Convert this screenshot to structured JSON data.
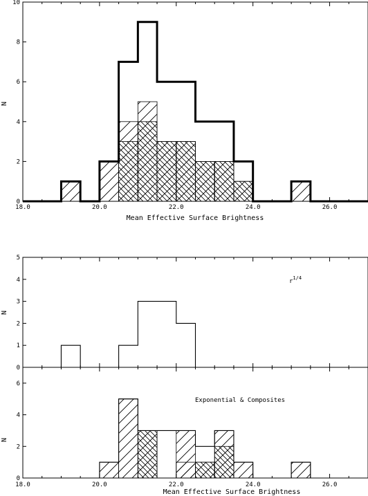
{
  "chart_data": [
    {
      "type": "bar",
      "xlabel": "Mean Effective Surface Brightness",
      "ylabel": "N",
      "xlim": [
        18.0,
        27.0
      ],
      "ylim": [
        0,
        10
      ],
      "x_ticks": [
        "18.0",
        "20.0",
        "22.0",
        "24.0",
        "26.0"
      ],
      "y_ticks": [
        "0",
        "2",
        "4",
        "6",
        "8",
        "10"
      ],
      "bin_edges": [
        18.0,
        18.5,
        19.0,
        19.5,
        20.0,
        20.5,
        21.0,
        21.5,
        22.0,
        22.5,
        23.0,
        23.5,
        24.0,
        24.5,
        25.0,
        25.5,
        26.0,
        26.5,
        27.0
      ],
      "series": [
        {
          "style": "bold-outline",
          "values": [
            0,
            0,
            1,
            0,
            2,
            7,
            9,
            6,
            6,
            4,
            4,
            2,
            0,
            0,
            1,
            0,
            0,
            0
          ]
        },
        {
          "style": "hatch-forward",
          "values": [
            0,
            0,
            1,
            0,
            2,
            4,
            5,
            3,
            3,
            2,
            2,
            1,
            0,
            0,
            1,
            0,
            0,
            0
          ]
        },
        {
          "style": "hatch-back",
          "values": [
            0,
            0,
            0,
            0,
            0,
            3,
            4,
            3,
            3,
            2,
            2,
            1,
            0,
            0,
            0,
            0,
            0,
            0
          ]
        }
      ]
    },
    {
      "type": "bar",
      "ylabel": "N",
      "xlim": [
        18.0,
        27.0
      ],
      "ylim": [
        0,
        5
      ],
      "y_ticks": [
        "0",
        "1",
        "2",
        "3",
        "4",
        "5"
      ],
      "annotation": "r",
      "annotation_sup": "1/4",
      "bin_edges": [
        18.0,
        18.5,
        19.0,
        19.5,
        20.0,
        20.5,
        21.0,
        21.5,
        22.0,
        22.5,
        23.0,
        23.5,
        24.0,
        24.5,
        25.0,
        25.5,
        26.0,
        26.5,
        27.0
      ],
      "series": [
        {
          "style": "outline",
          "values": [
            0,
            0,
            1,
            0,
            0,
            1,
            3,
            3,
            2,
            0,
            0,
            0,
            0,
            0,
            0,
            0,
            0,
            0
          ]
        }
      ]
    },
    {
      "type": "bar",
      "xlabel": "Mean Effective Surface Brightness",
      "ylabel": "N",
      "xlim": [
        18.0,
        27.0
      ],
      "ylim": [
        0,
        7
      ],
      "x_ticks": [
        "18.0",
        "20.0",
        "22.0",
        "24.0",
        "26.0"
      ],
      "y_ticks": [
        "0",
        "2",
        "4",
        "6"
      ],
      "annotation": "Exponential & Composites",
      "bin_edges": [
        18.0,
        18.5,
        19.0,
        19.5,
        20.0,
        20.5,
        21.0,
        21.5,
        22.0,
        22.5,
        23.0,
        23.5,
        24.0,
        24.5,
        25.0,
        25.5,
        26.0,
        26.5,
        27.0
      ],
      "series": [
        {
          "style": "outline",
          "values": [
            0,
            0,
            0,
            0,
            1,
            5,
            3,
            3,
            3,
            2,
            3,
            1,
            0,
            0,
            1,
            0,
            0,
            0
          ]
        },
        {
          "style": "hatch-forward",
          "values": [
            0,
            0,
            0,
            0,
            1,
            5,
            3,
            0,
            3,
            0,
            0,
            0,
            0,
            0,
            0,
            0,
            0,
            0
          ]
        },
        {
          "style": "hatch-back",
          "values": [
            0,
            0,
            0,
            0,
            0,
            0,
            3,
            0,
            0,
            0,
            0,
            0,
            0,
            0,
            0,
            0,
            0,
            0
          ]
        },
        {
          "style": "hatch-forward-2",
          "values": [
            0,
            0,
            0,
            0,
            0,
            0,
            0,
            0,
            1,
            1,
            3,
            1,
            0,
            0,
            1,
            0,
            0,
            0
          ]
        },
        {
          "style": "hatch-back-2",
          "values": [
            0,
            0,
            0,
            0,
            0,
            0,
            0,
            0,
            0,
            1,
            2,
            0,
            0,
            0,
            0,
            0,
            0,
            0
          ]
        }
      ]
    }
  ]
}
